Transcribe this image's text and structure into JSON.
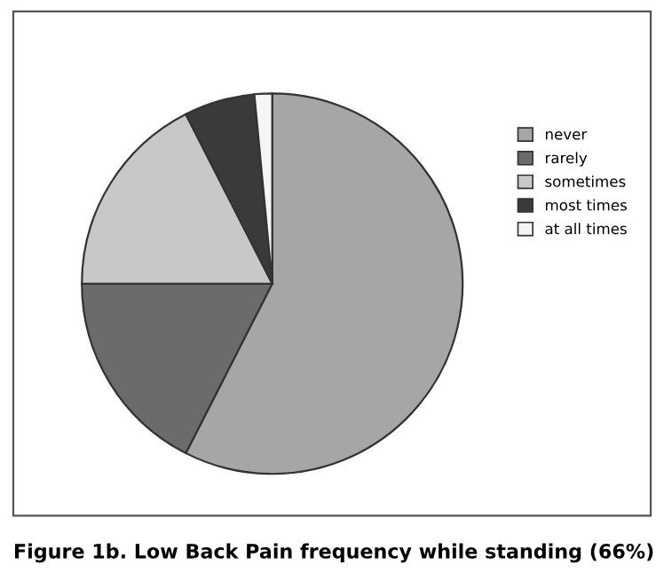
{
  "chart_data": {
    "type": "pie",
    "categories": [
      "never",
      "rarely",
      "sometimes",
      "most times",
      "at all times"
    ],
    "values": [
      57.5,
      17.5,
      17.5,
      6,
      1.5
    ],
    "colors": [
      "#a6a6a6",
      "#6b6b6b",
      "#c8c8c8",
      "#3a3a3a",
      "#f5f5f5"
    ],
    "legend": "right",
    "annotations": [
      "Figure 1b. Low Back Pain frequency while standing (66%)"
    ]
  }
}
